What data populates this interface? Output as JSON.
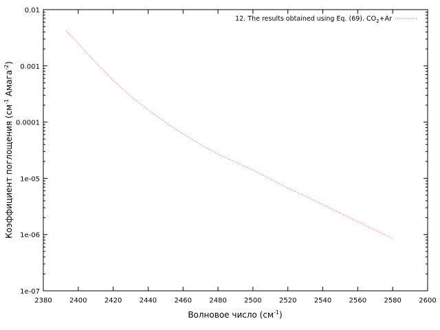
{
  "chart_data": {
    "type": "line",
    "title": "",
    "xlabel": "Волновое число (см",
    "xlabel_sup": "-1",
    "xlabel_end": ")",
    "ylabel": "Коэффициент поглощения (см",
    "ylabel_sup1": "-1",
    "ylabel_mid": " Амага",
    "ylabel_sup2": "-2",
    "ylabel_end": ")",
    "xlim": [
      2380,
      2600
    ],
    "ylim": [
      1e-07,
      0.01
    ],
    "yscale": "log",
    "grid": false,
    "legend_position": "top-right",
    "x_ticks": [
      "2380",
      "2400",
      "2420",
      "2440",
      "2460",
      "2480",
      "2500",
      "2520",
      "2540",
      "2560",
      "2580",
      "2600"
    ],
    "y_ticks": [
      "1e-07",
      "1e-06",
      "1e-05",
      "0.0001",
      "0.001",
      "0.01"
    ],
    "series": [
      {
        "name": "12. The results obtained using Eq. (69). CO₂+Ar",
        "name_pre": "12. The results obtained using Eq. (69). CO",
        "name_sub": "2",
        "name_post": "+Ar",
        "color": "#e8413c",
        "style": "dotted",
        "x": [
          2393,
          2400,
          2410,
          2420,
          2430,
          2440,
          2450,
          2460,
          2470,
          2480,
          2490,
          2500,
          2510,
          2520,
          2530,
          2540,
          2550,
          2560,
          2570,
          2580
        ],
        "y": [
          0.0042,
          0.0025,
          0.00115,
          0.00055,
          0.00029,
          0.000165,
          9.8e-05,
          6.2e-05,
          4e-05,
          2.7e-05,
          1.95e-05,
          1.4e-05,
          9.7e-06,
          6.7e-06,
          4.8e-06,
          3.4e-06,
          2.4e-06,
          1.7e-06,
          1.2e-06,
          8.5e-07
        ]
      }
    ]
  }
}
